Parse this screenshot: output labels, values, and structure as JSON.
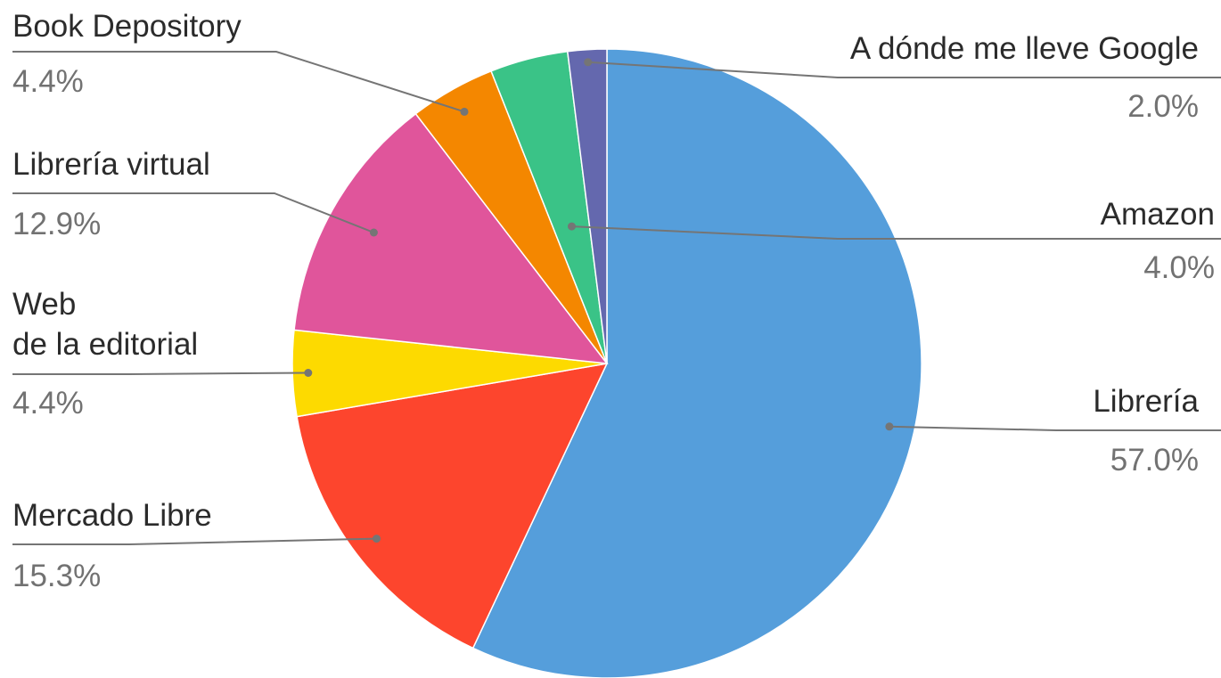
{
  "chart_data": {
    "type": "pie",
    "start": "top",
    "direction": "clockwise",
    "slices": [
      {
        "label": [
          "Librería"
        ],
        "percent_label": "57.0%",
        "value": 57.0,
        "color": "#559EDB"
      },
      {
        "label": [
          "Mercado Libre"
        ],
        "percent_label": "15.3%",
        "value": 15.3,
        "color": "#FD452D"
      },
      {
        "label": [
          "Web",
          "de la editorial"
        ],
        "percent_label": "4.4%",
        "value": 4.4,
        "color": "#FDDA00"
      },
      {
        "label": [
          "Librería virtual"
        ],
        "percent_label": "12.9%",
        "value": 12.9,
        "color": "#E0559B"
      },
      {
        "label": [
          "Book Depository"
        ],
        "percent_label": "4.4%",
        "value": 4.4,
        "color": "#F48700"
      },
      {
        "label": [
          "Amazon"
        ],
        "percent_label": "4.0%",
        "value": 4.0,
        "color": "#3AC387"
      },
      {
        "label": [
          "A dónde me lleve Google"
        ],
        "percent_label": "2.0%",
        "value": 2.0,
        "color": "#6468AE"
      }
    ]
  }
}
